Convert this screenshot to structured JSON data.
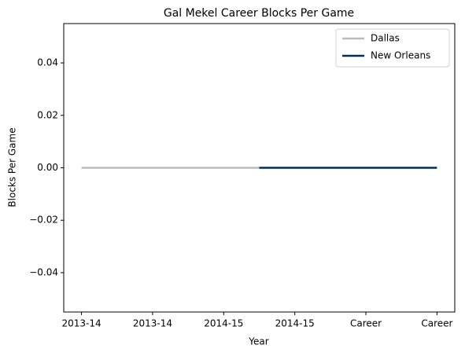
{
  "chart_data": {
    "type": "line",
    "title": "Gal Mekel Career Blocks Per Game",
    "xlabel": "Year",
    "ylabel": "Blocks Per Game",
    "series": [
      {
        "name": "Dallas",
        "color": "#bbbbbb",
        "x": [
          0,
          2.5
        ],
        "values": [
          0,
          0
        ]
      },
      {
        "name": "New Orleans",
        "color": "#002b5c",
        "x": [
          2.5,
          5
        ],
        "values": [
          0,
          0
        ]
      }
    ],
    "xlim": [
      -0.25,
      5.25
    ],
    "xticks": [
      {
        "value": 0,
        "label": "2013-14"
      },
      {
        "value": 1,
        "label": "2013-14"
      },
      {
        "value": 2,
        "label": "2014-15"
      },
      {
        "value": 3,
        "label": "2014-15"
      },
      {
        "value": 4,
        "label": "Career"
      },
      {
        "value": 5,
        "label": "Career"
      }
    ],
    "ylim": [
      -0.055,
      0.055
    ],
    "yticks": [
      {
        "value": -0.04,
        "label": "−0.04"
      },
      {
        "value": -0.02,
        "label": "−0.02"
      },
      {
        "value": 0,
        "label": "0.00"
      },
      {
        "value": 0.02,
        "label": "0.02"
      },
      {
        "value": 0.04,
        "label": "0.04"
      }
    ],
    "grid": false,
    "legend": "upper right"
  }
}
